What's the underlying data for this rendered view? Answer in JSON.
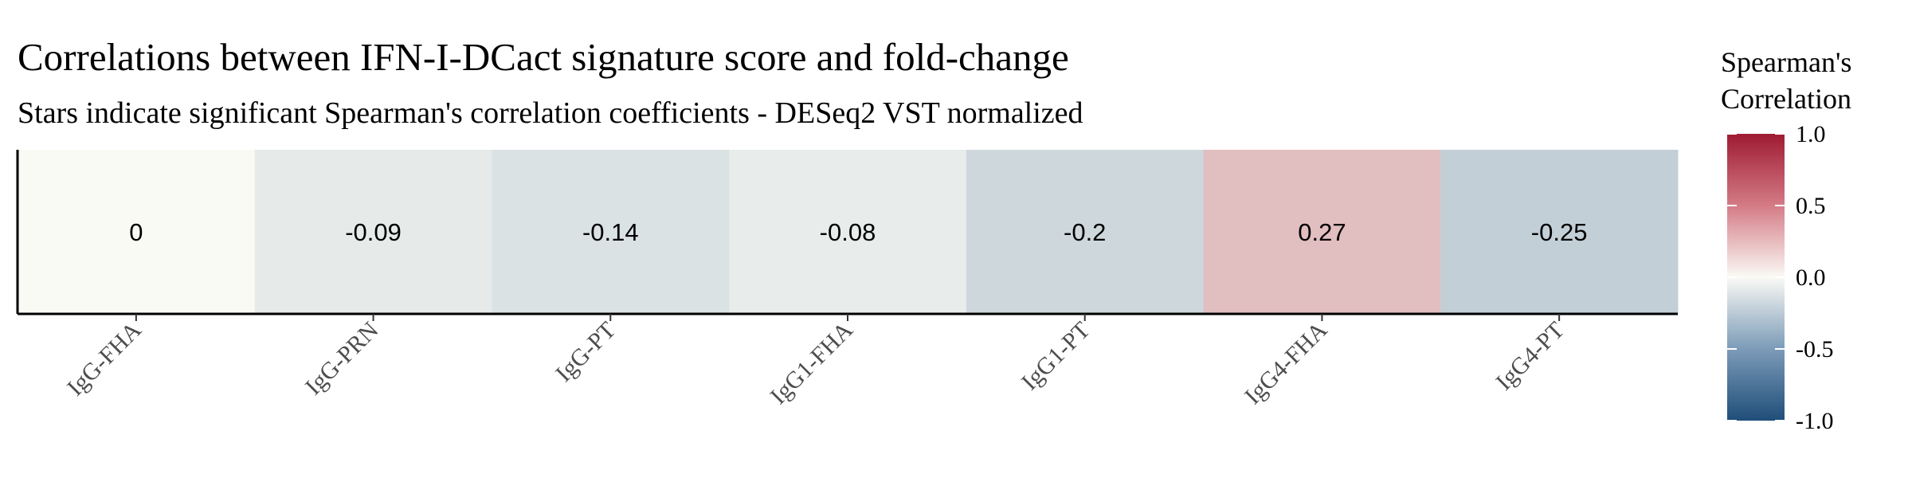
{
  "chart_data": {
    "type": "heatmap",
    "title": "Correlations between IFN-I-DCact signature score and fold-change",
    "subtitle": "Stars indicate significant Spearman's correlation coefficients - DESeq2 VST normalized",
    "categories": [
      "IgG-FHA",
      "IgG-PRN",
      "IgG-PT",
      "IgG1-FHA",
      "IgG1-PT",
      "IgG4-FHA",
      "IgG4-PT"
    ],
    "values": [
      0,
      -0.09,
      -0.14,
      -0.08,
      -0.2,
      0.27,
      -0.25
    ],
    "value_labels": [
      "0",
      "-0.09",
      "-0.14",
      "-0.08",
      "-0.2",
      "0.27",
      "-0.25"
    ],
    "legend": {
      "title_line1": "Spearman's",
      "title_line2": "Correlation",
      "range": [
        -1,
        1
      ],
      "ticks": [
        "1.0",
        "0.5",
        "0.0",
        "-0.5",
        "-1.0"
      ],
      "tick_values": [
        1,
        0.5,
        0,
        -0.5,
        -1
      ],
      "colors": {
        "low": "#1f4e79",
        "mid": "#fafaf5",
        "high": "#9e1b32"
      },
      "placement": "right"
    }
  }
}
